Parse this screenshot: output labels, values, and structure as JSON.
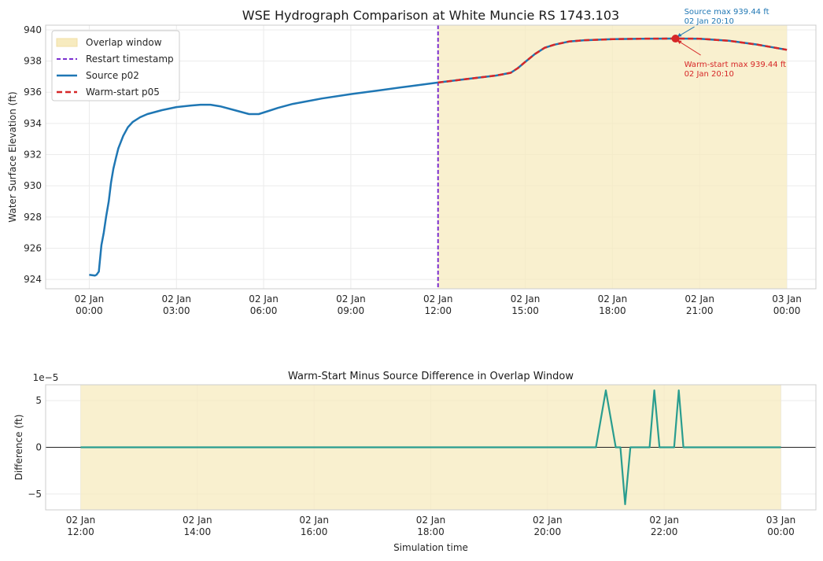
{
  "chart_data": [
    {
      "type": "line",
      "title": "WSE Hydrograph Comparison at White Muncie RS 1743.103",
      "xlabel": "",
      "ylabel": "Water Surface Elevation (ft)",
      "x_unit": "hours since 02 Jan 00:00",
      "xlim": [
        -1.5,
        25
      ],
      "ylim": [
        923.4,
        940.3
      ],
      "x_ticks": [
        {
          "x": 0,
          "line1": "02 Jan",
          "line2": "00:00"
        },
        {
          "x": 3,
          "line1": "02 Jan",
          "line2": "03:00"
        },
        {
          "x": 6,
          "line1": "02 Jan",
          "line2": "06:00"
        },
        {
          "x": 9,
          "line1": "02 Jan",
          "line2": "09:00"
        },
        {
          "x": 12,
          "line1": "02 Jan",
          "line2": "12:00"
        },
        {
          "x": 15,
          "line1": "02 Jan",
          "line2": "15:00"
        },
        {
          "x": 18,
          "line1": "02 Jan",
          "line2": "18:00"
        },
        {
          "x": 21,
          "line1": "02 Jan",
          "line2": "21:00"
        },
        {
          "x": 24,
          "line1": "03 Jan",
          "line2": "00:00"
        }
      ],
      "y_ticks": [
        924,
        926,
        928,
        930,
        932,
        934,
        936,
        938,
        940
      ],
      "grid": true,
      "legend_position": "top-left",
      "overlap_window": {
        "name": "Overlap window",
        "x_start": 12,
        "x_end": 24,
        "color": "#f7ebbf"
      },
      "restart": {
        "name": "Restart timestamp",
        "x": 12,
        "color": "#7b2fd0"
      },
      "series": [
        {
          "name": "Source p02",
          "color": "#1f77b4",
          "style": "solid",
          "x": [
            0,
            0.2,
            0.25,
            0.33,
            0.42,
            0.5,
            0.58,
            0.67,
            0.75,
            0.83,
            0.92,
            1.0,
            1.17,
            1.33,
            1.5,
            1.75,
            2.0,
            2.5,
            3.0,
            3.5,
            3.83,
            4.17,
            4.5,
            5.0,
            5.5,
            5.83,
            6.17,
            6.5,
            7.0,
            8.0,
            9.0,
            10.0,
            11.0,
            12.0
          ],
          "y": [
            924.3,
            924.25,
            924.3,
            924.5,
            926.2,
            927.0,
            928.0,
            929.0,
            930.2,
            931.1,
            931.8,
            932.4,
            933.2,
            933.75,
            934.1,
            934.4,
            934.6,
            934.85,
            935.05,
            935.15,
            935.2,
            935.2,
            935.1,
            934.85,
            934.6,
            934.6,
            934.8,
            935.0,
            935.25,
            935.6,
            935.88,
            936.13,
            936.38,
            936.62
          ]
        },
        {
          "name": "Warm-start p05",
          "color": "#d62728",
          "style": "dashed",
          "underlay_color": "#1f77b4",
          "x": [
            12.0,
            13.0,
            14.0,
            14.5,
            14.75,
            15.0,
            15.33,
            15.67,
            16.0,
            16.5,
            17.0,
            18.0,
            19.0,
            20.17,
            21.0,
            22.0,
            23.0,
            24.0
          ],
          "y": [
            936.62,
            936.85,
            937.07,
            937.25,
            937.55,
            937.95,
            938.45,
            938.85,
            939.05,
            939.25,
            939.33,
            939.4,
            939.43,
            939.44,
            939.43,
            939.3,
            939.05,
            938.72
          ]
        }
      ],
      "annotations": [
        {
          "text_lines": [
            "Source max 939.44 ft",
            "02 Jan 20:10"
          ],
          "point": {
            "x": 20.17,
            "y": 939.44
          },
          "color": "#1f77b4"
        },
        {
          "text_lines": [
            "Warm-start max 939.44 ft",
            "02 Jan 20:10"
          ],
          "point": {
            "x": 20.17,
            "y": 939.44
          },
          "color": "#d62728"
        }
      ]
    },
    {
      "type": "line",
      "title": "Warm-Start Minus Source Difference in Overlap Window",
      "xlabel": "Simulation time",
      "ylabel": "Difference (ft)",
      "y_multiplier_label": "1e−5",
      "x_unit": "hours since 02 Jan 12:00",
      "xlim": [
        -0.6,
        12.6
      ],
      "ylim": [
        -6.7,
        6.7
      ],
      "x_ticks": [
        {
          "x": 0,
          "line1": "02 Jan",
          "line2": "12:00"
        },
        {
          "x": 2,
          "line1": "02 Jan",
          "line2": "14:00"
        },
        {
          "x": 4,
          "line1": "02 Jan",
          "line2": "16:00"
        },
        {
          "x": 6,
          "line1": "02 Jan",
          "line2": "18:00"
        },
        {
          "x": 8,
          "line1": "02 Jan",
          "line2": "20:00"
        },
        {
          "x": 10,
          "line1": "02 Jan",
          "line2": "22:00"
        },
        {
          "x": 12,
          "line1": "03 Jan",
          "line2": "00:00"
        }
      ],
      "y_ticks": [
        -5,
        0,
        5
      ],
      "y_tick_labels": [
        "−5",
        "0",
        "5"
      ],
      "grid": true,
      "zero_line": true,
      "overlap_window": {
        "x_start": 0,
        "x_end": 12,
        "color": "#f7ebbf"
      },
      "series": [
        {
          "name": "",
          "color": "#2a9d8f",
          "style": "solid",
          "x": [
            0,
            8.83,
            9.0,
            9.17,
            9.25,
            9.33,
            9.42,
            9.5,
            9.58,
            9.75,
            9.83,
            9.92,
            10.0,
            10.17,
            10.25,
            10.33,
            12.0
          ],
          "y": [
            0,
            0,
            6.1,
            0,
            0,
            -6.1,
            0,
            0,
            0,
            0,
            6.1,
            0,
            0,
            0,
            6.1,
            0,
            0
          ]
        }
      ]
    }
  ]
}
